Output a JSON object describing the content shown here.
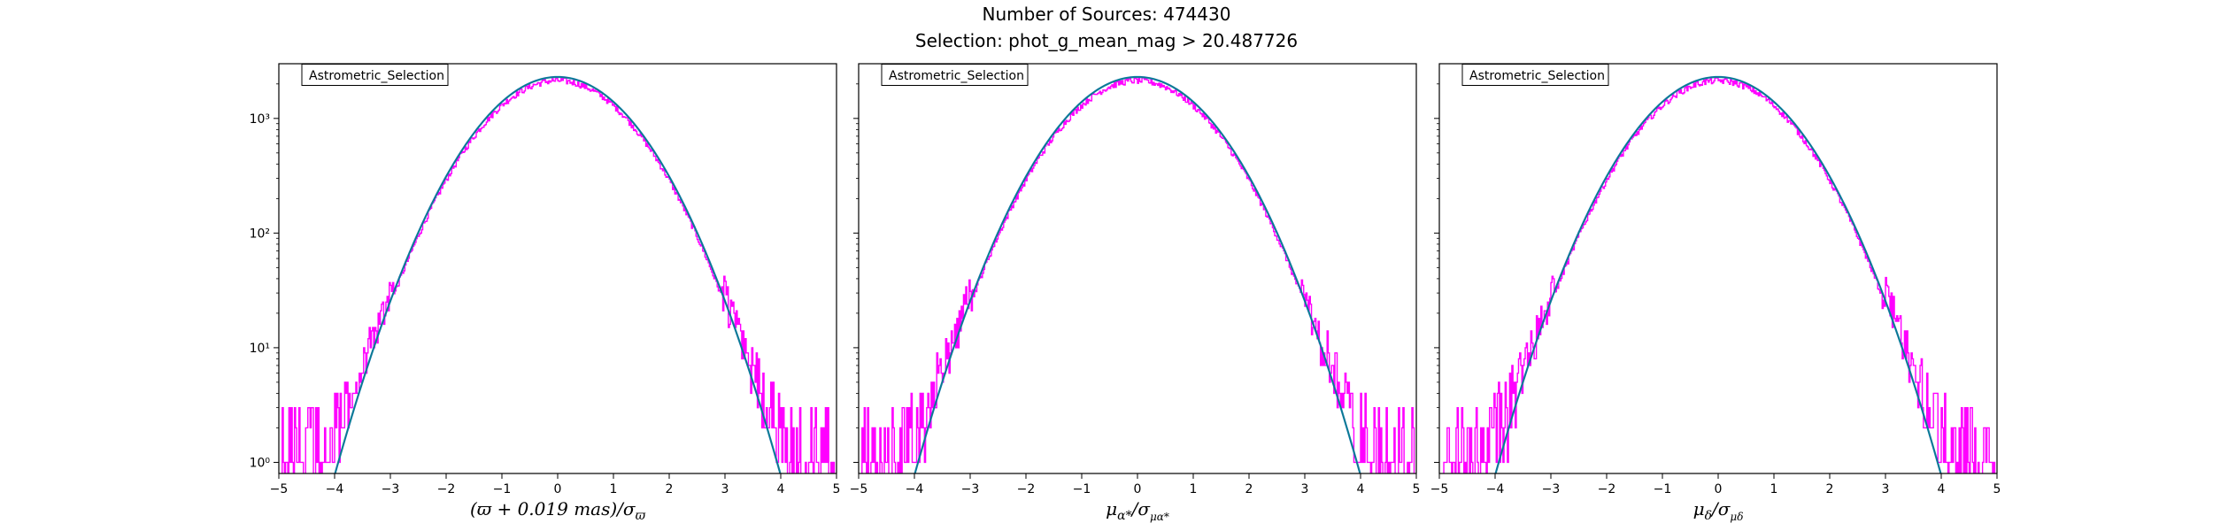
{
  "figure": {
    "title_line1": "Number of Sources: 474430",
    "title_line2": "Selection: phot_g_mean_mag > 20.487726"
  },
  "colors": {
    "histogram": "#ff00ff",
    "model_curve": "#1f77b4",
    "model_curve_secondary": "#008080"
  },
  "chart_data": [
    {
      "type": "line",
      "panel": "parallax",
      "legend": "Astrometric_Selection",
      "legend_location": "upper-left",
      "xlabel": "(ϖ + 0.019 mas)/σϖ",
      "ylabel": "",
      "xlim": [
        -5,
        5
      ],
      "ylim": [
        0.8,
        3000
      ],
      "yscale": "log",
      "xticks": [
        -5,
        -4,
        -3,
        -2,
        -1,
        0,
        1,
        2,
        3,
        4,
        5
      ],
      "yticks": [
        1,
        10,
        100,
        1000
      ],
      "ytick_labels": [
        "10⁰",
        "10¹",
        "10²",
        "10³"
      ],
      "model": {
        "peak": 2300,
        "sigma": 1.0,
        "name": ""
      },
      "histogram": {
        "name": "",
        "bin_width": 0.02,
        "left_tail_start": -4.95,
        "right_tail_end": 4.9
      }
    },
    {
      "type": "line",
      "panel": "pmra",
      "legend": "Astrometric_Selection",
      "legend_location": "upper-left",
      "xlabel": "μα*/σμα*",
      "ylabel": "",
      "xlim": [
        -5,
        5
      ],
      "ylim": [
        0.8,
        3000
      ],
      "yscale": "log",
      "xticks": [
        -5,
        -4,
        -3,
        -2,
        -1,
        0,
        1,
        2,
        3,
        4,
        5
      ],
      "yticks": [
        1,
        10,
        100,
        1000
      ],
      "ytick_labels": [
        "10⁰",
        "10¹",
        "10²",
        "10³"
      ],
      "model": {
        "peak": 2300,
        "sigma": 1.0,
        "name": ""
      },
      "histogram": {
        "name": "",
        "bin_width": 0.02,
        "left_tail_start": -4.95,
        "right_tail_end": 4.95
      }
    },
    {
      "type": "line",
      "panel": "pmdec",
      "legend": "Astrometric_Selection",
      "legend_location": "upper-left",
      "xlabel": "μδ/σμδ",
      "ylabel": "",
      "xlim": [
        -5,
        5
      ],
      "ylim": [
        0.8,
        3000
      ],
      "yscale": "log",
      "xticks": [
        -5,
        -4,
        -3,
        -2,
        -1,
        0,
        1,
        2,
        3,
        4,
        5
      ],
      "yticks": [
        1,
        10,
        100,
        1000
      ],
      "ytick_labels": [
        "10⁰",
        "10¹",
        "10²",
        "10³"
      ],
      "model": {
        "peak": 2300,
        "sigma": 1.0,
        "name": ""
      },
      "histogram": {
        "name": "",
        "bin_width": 0.02,
        "left_tail_start": -4.95,
        "right_tail_end": 4.95
      }
    }
  ]
}
